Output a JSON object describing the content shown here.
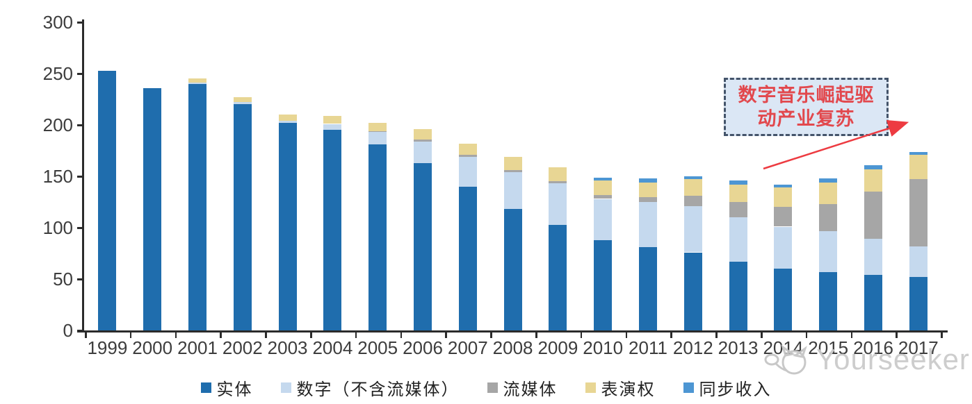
{
  "chart_data": {
    "type": "bar",
    "stacked": true,
    "title": "",
    "categories": [
      "1999",
      "2000",
      "2001",
      "2002",
      "2003",
      "2004",
      "2005",
      "2006",
      "2007",
      "2008",
      "2009",
      "2010",
      "2011",
      "2012",
      "2013",
      "2014",
      "2015",
      "2016",
      "2017"
    ],
    "series": [
      {
        "name": "实体",
        "color": "#1F6DAD",
        "values": [
          253,
          236,
          240,
          220,
          202,
          195,
          181,
          163,
          140,
          118,
          103,
          88,
          81,
          76,
          67,
          60,
          57,
          54,
          52
        ]
      },
      {
        "name": "数字（不含流媒体）",
        "color": "#C5D9EE",
        "values": [
          0,
          0,
          1,
          2,
          2,
          6,
          12,
          21,
          29,
          36,
          40,
          40,
          44,
          45,
          43,
          41,
          40,
          35,
          30
        ]
      },
      {
        "name": "流媒体",
        "color": "#A6A6A6",
        "values": [
          0,
          0,
          0,
          0,
          0,
          0,
          1,
          2,
          2,
          2,
          2,
          4,
          5,
          10,
          15,
          19,
          26,
          46,
          65
        ]
      },
      {
        "name": "表演权",
        "color": "#E8D694",
        "values": [
          0,
          0,
          4,
          5,
          6,
          8,
          8,
          10,
          11,
          13,
          14,
          14,
          14,
          16,
          17,
          19,
          21,
          22,
          24
        ]
      },
      {
        "name": "同步收入",
        "color": "#4D96D3",
        "values": [
          0,
          0,
          0,
          0,
          0,
          0,
          0,
          0,
          0,
          0,
          0,
          3,
          4,
          3,
          4,
          3,
          4,
          4,
          3
        ]
      }
    ],
    "ylim": [
      0,
      300
    ],
    "yticks": [
      0,
      50,
      100,
      150,
      200,
      250,
      300
    ],
    "xlabel": "",
    "ylabel": "",
    "grid": false,
    "legend_position": "bottom"
  },
  "annotation": {
    "line1": "数字音乐崛起驱",
    "line2": "动产业复苏",
    "text_color": "#E2484D",
    "box_fill": "#DBE7F5",
    "box_border": "#44546A",
    "arrow_color": "#ED3B41"
  },
  "watermark": {
    "text": "Yourseeker",
    "color": "#cbcbcb"
  }
}
